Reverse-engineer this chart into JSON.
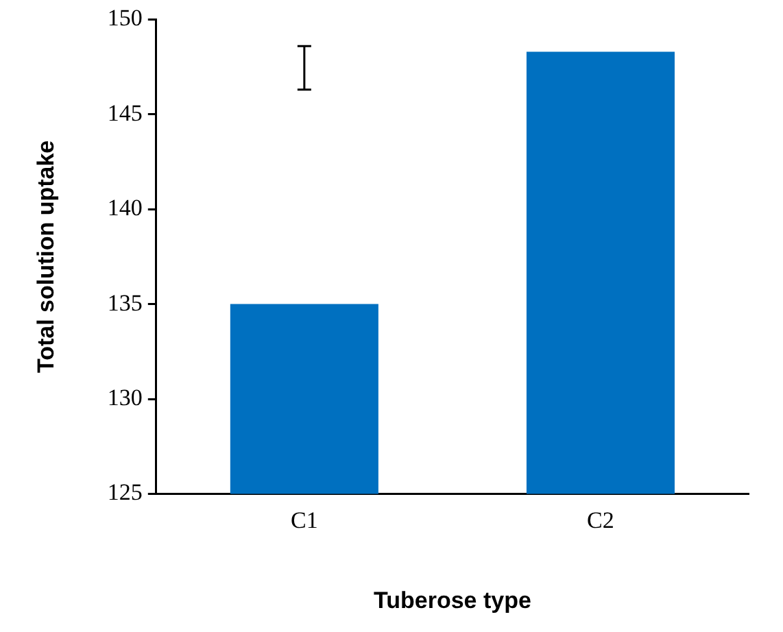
{
  "chart_data": {
    "type": "bar",
    "xlabel": "Tuberose type",
    "ylabel": "Total solution uptake",
    "categories": [
      "C1",
      "C2"
    ],
    "values": [
      135,
      148.3
    ],
    "color": "#0070c0",
    "errors": [
      [
        146.3,
        148.6
      ],
      null
    ],
    "ylim": [
      125,
      150
    ],
    "yticks": [
      125,
      130,
      135,
      140,
      145,
      150
    ],
    "grid": false,
    "legend": false
  }
}
